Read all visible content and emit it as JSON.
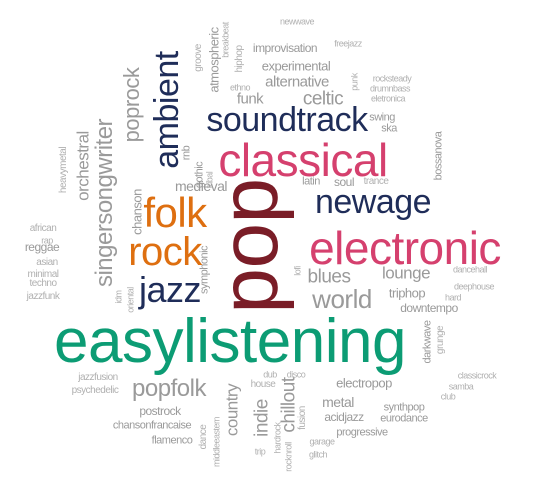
{
  "colors": {
    "gray": "#9a9a9a",
    "navy": "#1f2d59",
    "pink": "#d5406e",
    "orange": "#de6f10",
    "maroon": "#7a1d27",
    "green": "#0c9c74"
  },
  "words": {
    "pop": "pop",
    "easylistening": "easylistening",
    "classical": "classical",
    "electronic": "electronic",
    "soundtrack": "soundtrack",
    "newage": "newage",
    "folk": "folk",
    "rock": "rock",
    "jazz": "jazz",
    "ambient": "ambient",
    "singersongwriter": "singersongwriter",
    "world": "world",
    "popfolk": "popfolk",
    "celtic": "celtic",
    "orchestral": "orchestral",
    "poprock": "poprock",
    "blues": "blues",
    "lounge": "lounge",
    "chillout": "chillout",
    "country": "country",
    "alternative": "alternative",
    "medieval": "medieval",
    "metal": "metal",
    "indie": "indie",
    "funk": "funk",
    "electropop": "electropop",
    "experimental": "experimental",
    "improvisation": "improvisation",
    "triphop": "triphop",
    "downtempo": "downtempo",
    "chanson": "chanson",
    "atmospheric": "atmospheric",
    "postrock": "postrock",
    "acidjazz": "acidjazz",
    "synthpop": "synthpop",
    "eurodance": "eurodance",
    "progressive": "progressive",
    "chansonfrancaise": "chansonfrancaise",
    "flamenco": "flamenco",
    "swing": "swing",
    "ska": "ska",
    "reggae": "reggae",
    "asian": "asian",
    "minimal": "minimal",
    "techno": "techno",
    "jazzfunk": "jazzfunk",
    "african": "african",
    "rap": "rap",
    "heavymetal": "heavymetal",
    "latin": "latin",
    "soul": "soul",
    "trance": "trance",
    "bossanova": "bossanova",
    "newwave": "newwave",
    "freejazz": "freejazz",
    "groove": "groove",
    "breakbeat": "breakbeat",
    "hiphop": "hiphop",
    "ethno": "ethno",
    "rocksteady": "rocksteady",
    "drumnbass": "drumnbass",
    "punk": "punk",
    "eletronica": "eletronica",
    "rnb": "rnb",
    "gothic": "gothic",
    "tribal": "tribal",
    "symphonic": "symphonic",
    "idm": "idm",
    "oriental": "oriental",
    "lofi": "lofi",
    "dancehall": "dancehall",
    "deephouse": "deephouse",
    "hard": "hard",
    "darkwave": "darkwave",
    "grunge": "grunge",
    "classicrock": "classicrock",
    "samba": "samba",
    "club": "club",
    "dub": "dub",
    "disco": "disco",
    "house": "house",
    "fusion": "fusion",
    "hardrock": "hardrock",
    "rocknroll": "rocknroll",
    "garage": "garage",
    "glitch": "glitch",
    "trip": "trip",
    "middleeastern": "middleeastern",
    "dance": "dance",
    "jazzfusion": "jazzfusion",
    "psychedelic": "psychedelic"
  }
}
